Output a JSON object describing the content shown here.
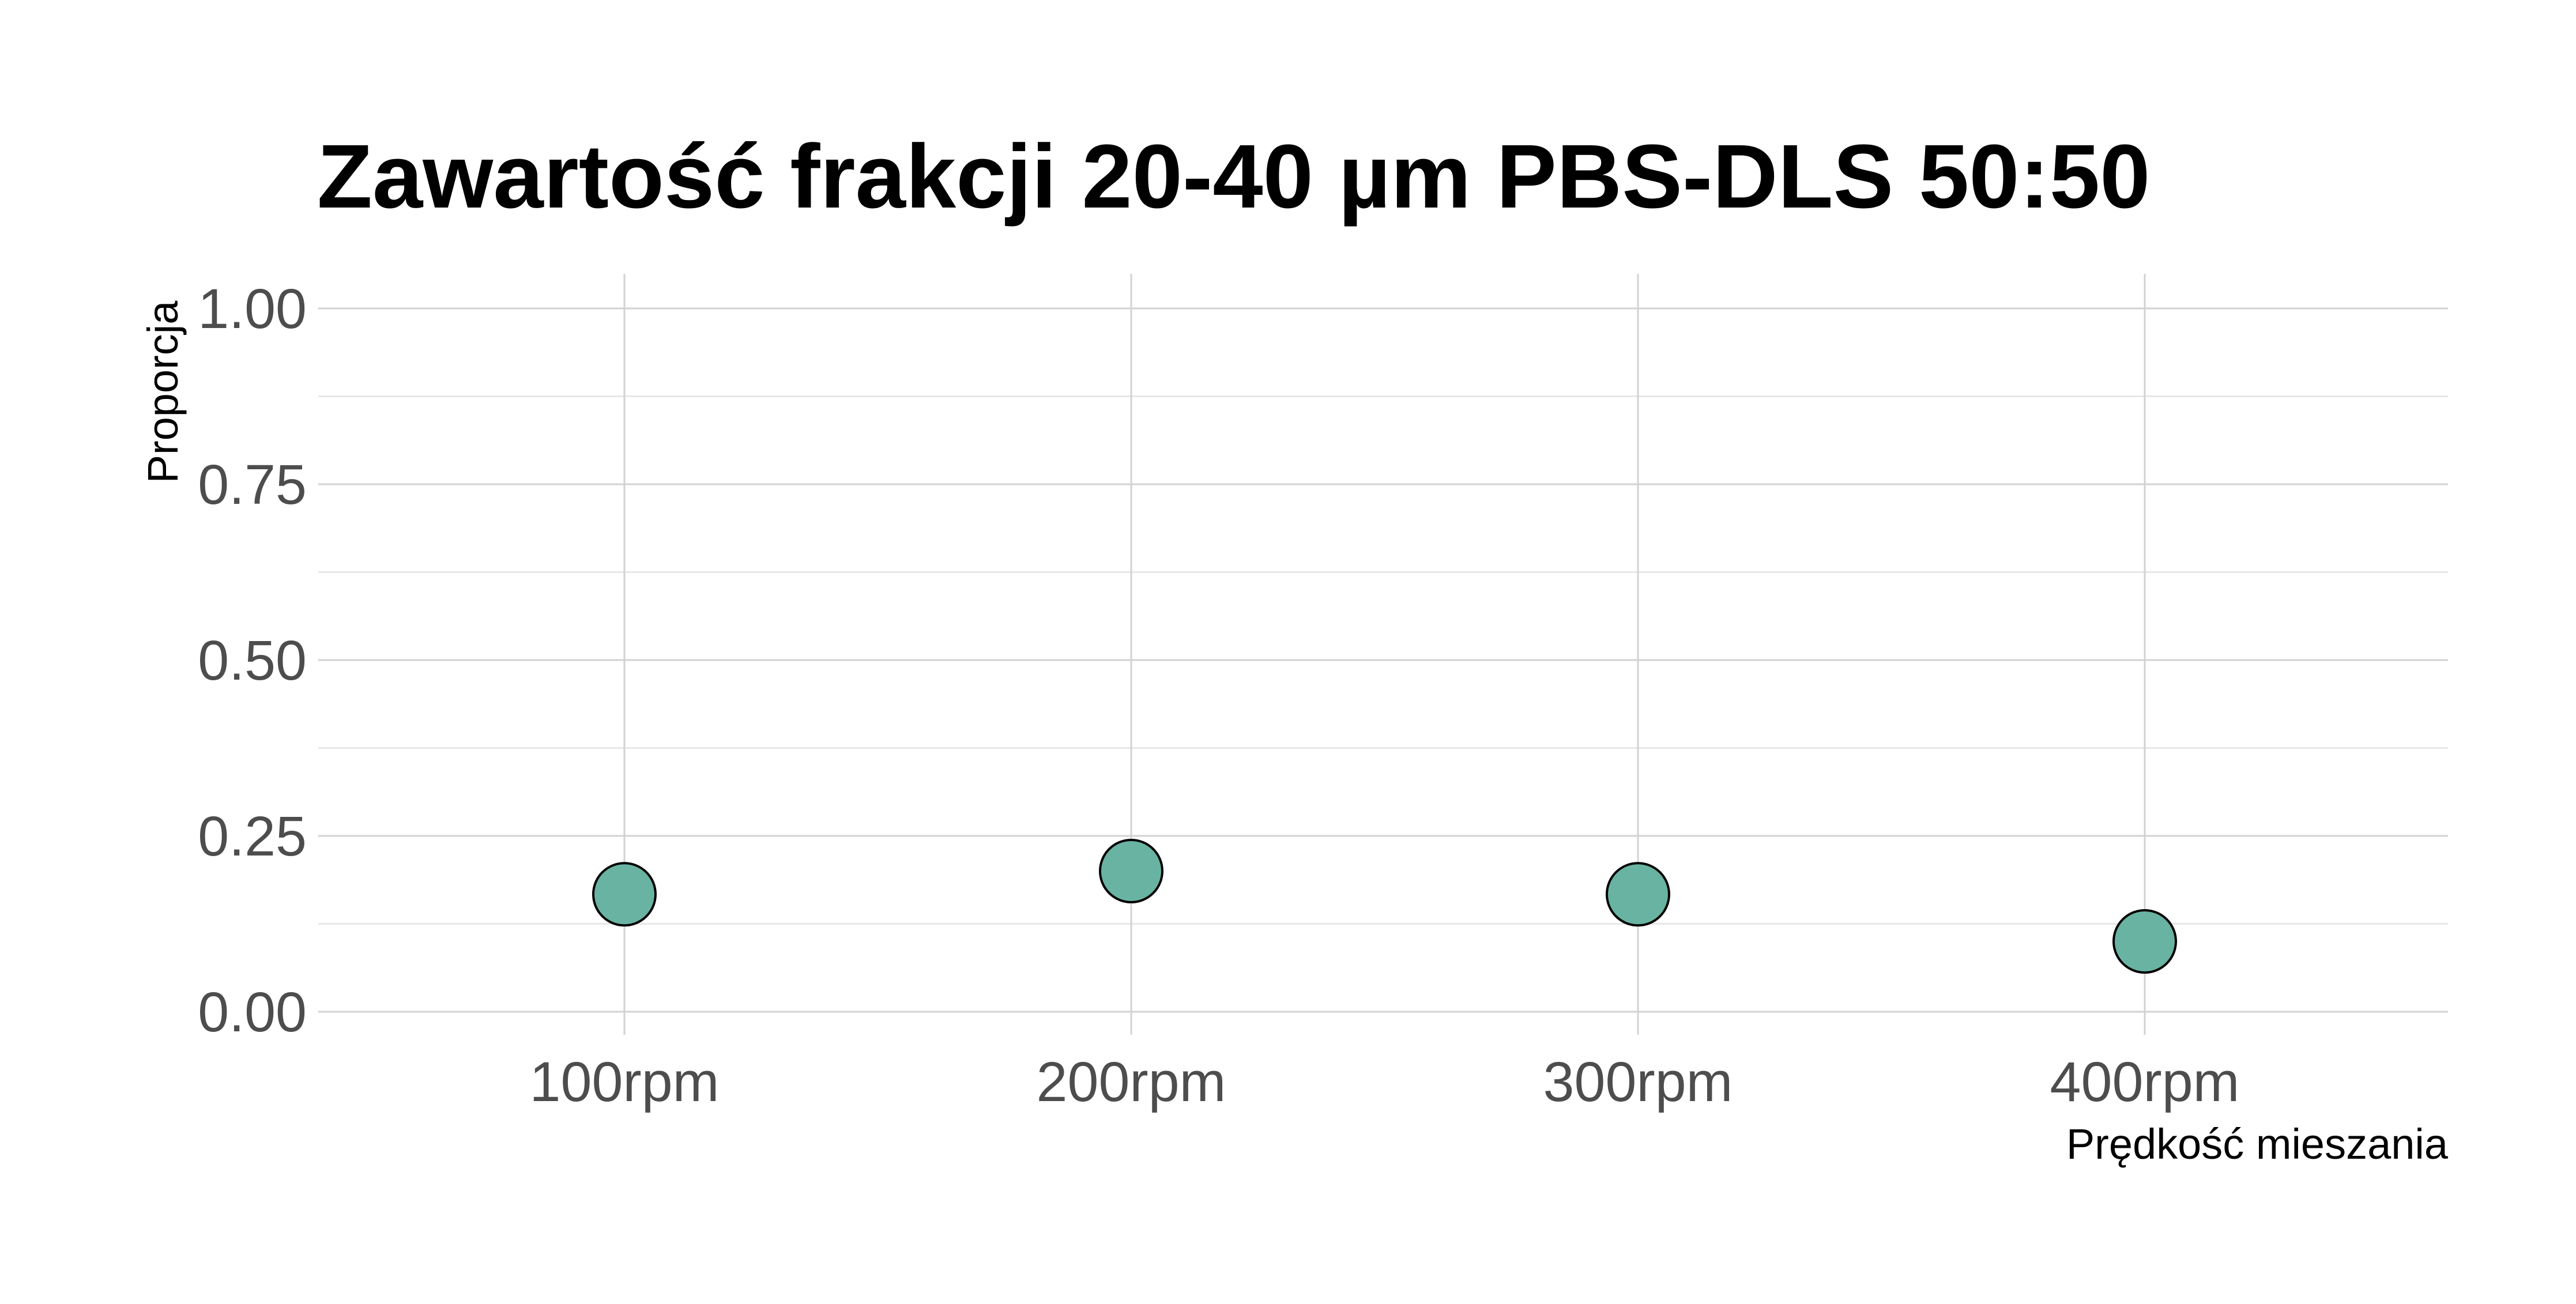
{
  "chart_data": {
    "type": "scatter",
    "title": "Zawartość frakcji 20-40 µm PBS-DLS 50:50",
    "xlabel": "Prędkość mieszania",
    "ylabel": "Proporcja",
    "categories": [
      "100rpm",
      "200rpm",
      "300rpm",
      "400rpm"
    ],
    "series": [
      {
        "values": [
          0.167,
          0.2,
          0.167,
          0.1
        ]
      }
    ],
    "ylim": [
      0,
      1
    ],
    "yticks": [
      "0.00",
      "0.25",
      "0.50",
      "0.75",
      "1.00"
    ],
    "grid": true,
    "point_color": "#69b3a2",
    "point_outline": "#000000"
  }
}
